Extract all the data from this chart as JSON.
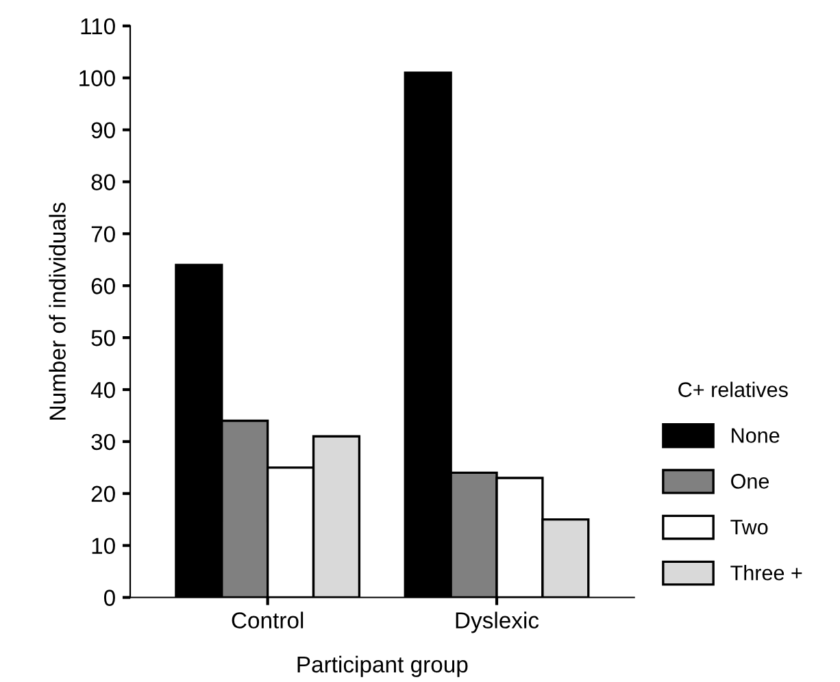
{
  "chart_data": {
    "type": "bar",
    "xlabel": "Participant group",
    "ylabel": "Number of individuals",
    "legend_title": "C+ relatives",
    "categories": [
      "Control",
      "Dyslexic"
    ],
    "series": [
      {
        "name": "None",
        "color": "#000000",
        "values": [
          64,
          101
        ]
      },
      {
        "name": "One",
        "color": "#808080",
        "values": [
          34,
          24
        ]
      },
      {
        "name": "Two",
        "color": "#ffffff",
        "values": [
          25,
          23
        ]
      },
      {
        "name": "Three +",
        "color": "#d9d9d9",
        "values": [
          31,
          15
        ]
      }
    ],
    "ylim": [
      0,
      110
    ],
    "yticks": [
      0,
      10,
      20,
      30,
      40,
      50,
      60,
      70,
      80,
      90,
      100,
      110
    ],
    "grid": false,
    "legend": "right"
  }
}
